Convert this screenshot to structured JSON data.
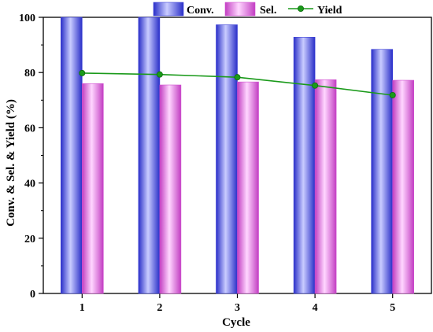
{
  "chart_data": {
    "type": "bar",
    "categories": [
      "1",
      "2",
      "3",
      "4",
      "5"
    ],
    "xlabel": "Cycle",
    "ylabel": "Conv. & Sel. & Yield (%)",
    "ylim": [
      0,
      100
    ],
    "yticks": [
      0,
      20,
      40,
      60,
      80,
      100
    ],
    "grid": false,
    "legend_placement": "top",
    "series": [
      {
        "name": "Conv.",
        "kind": "bar",
        "color": "#3a3fd6",
        "values": [
          100,
          100,
          97.3,
          92.8,
          88.4
        ]
      },
      {
        "name": "Sel.",
        "kind": "bar",
        "color": "#d04fd0",
        "values": [
          76.0,
          75.5,
          76.6,
          77.4,
          77.2
        ]
      },
      {
        "name": "Yield",
        "kind": "line",
        "color": "#1a9a1a",
        "values": [
          79.8,
          79.3,
          78.3,
          75.3,
          71.8
        ]
      }
    ]
  }
}
